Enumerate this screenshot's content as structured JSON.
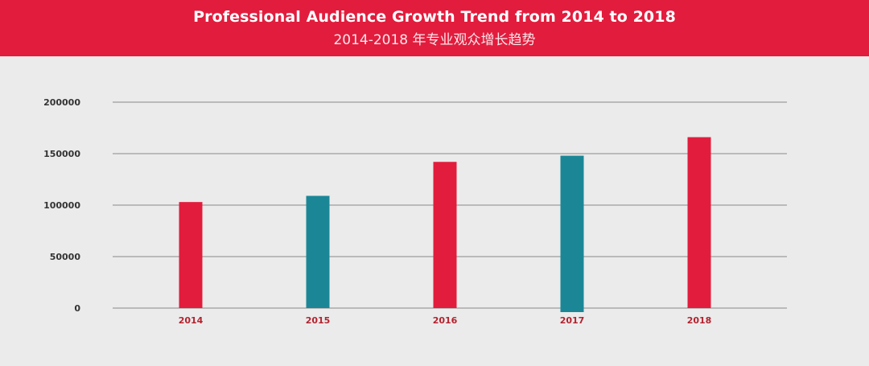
{
  "header": {
    "title": "Professional Audience Growth Trend from 2014 to 2018",
    "subtitle": "2014-2018 年专业观众增长趋势"
  },
  "colors": {
    "header_bg": "#e21c3d",
    "red_bar": "#e21c3d",
    "teal_bar": "#1b8796",
    "gridline": "#8a8a8a",
    "tick_text": "#333333",
    "category_text": "#b5222e"
  },
  "chart_data": {
    "type": "bar",
    "title": "Professional Audience Growth Trend from 2014 to 2018",
    "subtitle": "2014-2018 年专业观众增长趋势",
    "categories": [
      "2014",
      "2015",
      "2016",
      "2017",
      "2018"
    ],
    "values": [
      103000,
      109000,
      142000,
      148000,
      166000
    ],
    "bar_colors": [
      "#e21c3d",
      "#1b8796",
      "#e21c3d",
      "#1b8796",
      "#e21c3d"
    ],
    "yticks": [
      "200000",
      "150000",
      "100000",
      "50000",
      "0"
    ],
    "ylim": [
      0,
      200000
    ],
    "xlabel": "",
    "ylabel": "",
    "grid": true,
    "legend": "none"
  }
}
